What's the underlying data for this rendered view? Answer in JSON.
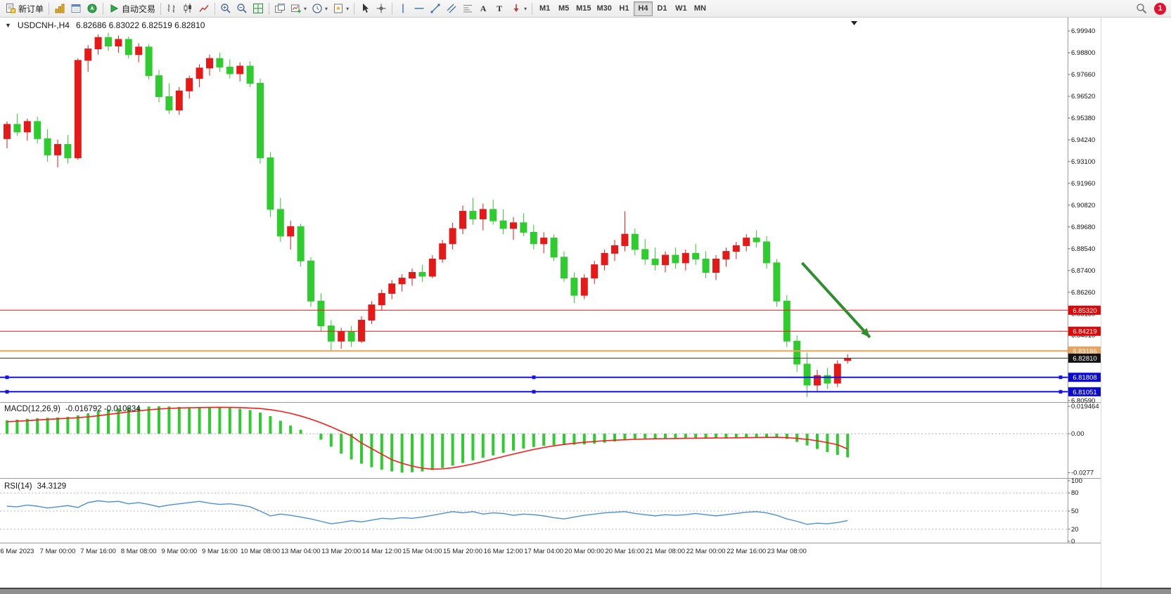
{
  "toolbar": {
    "new_order_label": "新订单",
    "autotrading_label": "自动交易",
    "timeframes": [
      "M1",
      "M5",
      "M15",
      "M30",
      "H1",
      "H4",
      "D1",
      "W1",
      "MN"
    ],
    "active_timeframe": "H4",
    "notification_count": "1",
    "icons": {
      "new_order": "new-order-doc",
      "market_watch": "gold-bars",
      "data_window": "data-window",
      "navigator": "navigator-globe",
      "autotrading": "play-triangle",
      "bar_chart": "ohlc-bars",
      "candle_chart": "candlesticks",
      "line_chart": "line-chart",
      "zoom_in": "magnifier-plus",
      "zoom_out": "magnifier-minus",
      "tile_windows": "tile-grid",
      "cascade_windows": "cascade-windows",
      "new_chart": "chart-plus",
      "profiles": "clock",
      "templates": "page-star",
      "cursor": "pointer-arrow",
      "crosshair": "crosshair",
      "vline": "vertical-line",
      "hline": "horizontal-line",
      "trendline": "trend-line",
      "channel": "parallel-channel",
      "fibonacci": "fibo-lines",
      "text": "letter-A",
      "label": "letter-T",
      "arrows_tool": "arrow-marker",
      "search": "magnifier",
      "notification": "red-count-bubble"
    }
  },
  "chart_data": {
    "type": "candlestick",
    "symbol_period_label": "USDCNH-,H4",
    "ohlc_display": "6.82686 6.83022 6.82519 6.82810",
    "up_color": "#e61919",
    "down_color": "#2ecc2e",
    "grid": false,
    "price_axis": {
      "min": 6.8051,
      "max": 7.0053,
      "ticks": [
        "6.99940",
        "6.98800",
        "6.97660",
        "6.96520",
        "6.95380",
        "6.94240",
        "6.93100",
        "6.91960",
        "6.90820",
        "6.89680",
        "6.88540",
        "6.87400",
        "6.86260",
        "6.85130",
        "6.84010",
        "6.82870",
        "6.81730",
        "6.80590"
      ]
    },
    "candles": [
      [
        6.943,
        6.952,
        6.938,
        6.9505
      ],
      [
        6.9505,
        6.956,
        6.9445,
        6.9465
      ],
      [
        6.9465,
        6.9535,
        6.942,
        6.952
      ],
      [
        6.952,
        6.9545,
        6.9405,
        6.943
      ],
      [
        6.943,
        6.948,
        6.931,
        6.9345
      ],
      [
        6.9345,
        6.9425,
        6.928,
        6.94
      ],
      [
        6.94,
        6.945,
        6.93,
        6.933
      ],
      [
        6.933,
        6.985,
        6.932,
        6.984
      ],
      [
        6.984,
        6.992,
        6.978,
        6.99
      ],
      [
        6.99,
        6.9975,
        6.987,
        6.996
      ],
      [
        6.996,
        6.9985,
        6.989,
        6.9915
      ],
      [
        6.9915,
        6.997,
        6.988,
        6.995
      ],
      [
        6.995,
        6.9965,
        6.985,
        6.987
      ],
      [
        6.987,
        6.993,
        6.983,
        6.991
      ],
      [
        6.991,
        6.9925,
        6.974,
        6.976
      ],
      [
        6.976,
        6.979,
        6.962,
        6.965
      ],
      [
        6.965,
        6.972,
        6.956,
        6.958
      ],
      [
        6.958,
        6.97,
        6.9555,
        6.968
      ],
      [
        6.968,
        6.976,
        6.964,
        6.9745
      ],
      [
        6.9745,
        6.982,
        6.97,
        6.98
      ],
      [
        6.98,
        6.987,
        6.976,
        6.985
      ],
      [
        6.985,
        6.988,
        6.978,
        6.9805
      ],
      [
        6.9805,
        6.9845,
        6.9745,
        6.977
      ],
      [
        6.977,
        6.983,
        6.973,
        6.981
      ],
      [
        6.981,
        6.9835,
        6.97,
        6.972
      ],
      [
        6.972,
        6.9745,
        6.93,
        6.933
      ],
      [
        6.933,
        6.936,
        6.902,
        6.906
      ],
      [
        6.906,
        6.912,
        6.889,
        6.892
      ],
      [
        6.892,
        6.9,
        6.885,
        6.897
      ],
      [
        6.897,
        6.8985,
        6.876,
        6.879
      ],
      [
        6.879,
        6.881,
        6.855,
        6.858
      ],
      [
        6.858,
        6.862,
        6.842,
        6.845
      ],
      [
        6.845,
        6.848,
        6.8315,
        6.837
      ],
      [
        6.837,
        6.844,
        6.833,
        6.842
      ],
      [
        6.842,
        6.845,
        6.834,
        6.837
      ],
      [
        6.837,
        6.85,
        6.836,
        6.848
      ],
      [
        6.848,
        6.858,
        6.846,
        6.856
      ],
      [
        6.856,
        6.864,
        6.853,
        6.862
      ],
      [
        6.862,
        6.869,
        6.859,
        6.867
      ],
      [
        6.867,
        6.872,
        6.863,
        6.87
      ],
      [
        6.87,
        6.875,
        6.866,
        6.873
      ],
      [
        6.873,
        6.877,
        6.868,
        6.871
      ],
      [
        6.871,
        6.882,
        6.87,
        6.88
      ],
      [
        6.88,
        6.89,
        6.878,
        6.888
      ],
      [
        6.888,
        6.899,
        6.885,
        6.896
      ],
      [
        6.896,
        6.908,
        6.893,
        6.905
      ],
      [
        6.905,
        6.912,
        6.898,
        6.901
      ],
      [
        6.901,
        6.909,
        6.895,
        6.906
      ],
      [
        6.906,
        6.911,
        6.898,
        6.9
      ],
      [
        6.9,
        6.906,
        6.893,
        6.896
      ],
      [
        6.896,
        6.902,
        6.89,
        6.899
      ],
      [
        6.899,
        6.904,
        6.892,
        6.894
      ],
      [
        6.894,
        6.898,
        6.885,
        6.888
      ],
      [
        6.888,
        6.894,
        6.883,
        6.891
      ],
      [
        6.891,
        6.893,
        6.879,
        6.881
      ],
      [
        6.881,
        6.884,
        6.868,
        6.87
      ],
      [
        6.87,
        6.873,
        6.857,
        6.861
      ],
      [
        6.861,
        6.872,
        6.859,
        6.87
      ],
      [
        6.87,
        6.879,
        6.867,
        6.877
      ],
      [
        6.877,
        6.885,
        6.874,
        6.883
      ],
      [
        6.883,
        6.89,
        6.879,
        6.887
      ],
      [
        6.887,
        6.905,
        6.884,
        6.893
      ],
      [
        6.893,
        6.896,
        6.882,
        6.885
      ],
      [
        6.885,
        6.8905,
        6.877,
        6.88
      ],
      [
        6.88,
        6.886,
        6.874,
        6.877
      ],
      [
        6.877,
        6.884,
        6.873,
        6.882
      ],
      [
        6.882,
        6.886,
        6.875,
        6.878
      ],
      [
        6.878,
        6.885,
        6.874,
        6.883
      ],
      [
        6.883,
        6.888,
        6.877,
        6.88
      ],
      [
        6.88,
        6.884,
        6.87,
        6.873
      ],
      [
        6.873,
        6.882,
        6.869,
        6.88
      ],
      [
        6.88,
        6.886,
        6.876,
        6.884
      ],
      [
        6.884,
        6.889,
        6.88,
        6.887
      ],
      [
        6.887,
        6.893,
        6.884,
        6.891
      ],
      [
        6.891,
        6.895,
        6.886,
        6.889
      ],
      [
        6.889,
        6.892,
        6.875,
        6.878
      ],
      [
        6.878,
        6.88,
        6.855,
        6.858
      ],
      [
        6.858,
        6.861,
        6.834,
        6.837
      ],
      [
        6.837,
        6.84,
        6.821,
        6.825
      ],
      [
        6.825,
        6.831,
        6.8078,
        6.814
      ],
      [
        6.814,
        6.822,
        6.8105,
        6.819
      ],
      [
        6.819,
        6.823,
        6.812,
        6.815
      ],
      [
        6.815,
        6.827,
        6.813,
        6.825
      ],
      [
        6.82686,
        6.83022,
        6.82519,
        6.8281
      ]
    ],
    "hlines": [
      {
        "price": 6.8532,
        "label": "6.85320",
        "color": "#f01414",
        "badge": "#dd0808",
        "width": 1,
        "handles": false
      },
      {
        "price": 6.84219,
        "label": "6.84219",
        "color": "#f01414",
        "badge": "#dd0808",
        "width": 1,
        "handles": false
      },
      {
        "price": 6.83186,
        "label": "6.83186",
        "color": "#e8a35f",
        "badge": "#e8a35f",
        "width": 2,
        "handles": false
      },
      {
        "price": 6.8281,
        "label": "6.82810",
        "color": "#3a3a3a",
        "badge": "#141414",
        "width": 1,
        "handles": false
      },
      {
        "price": 6.81808,
        "label": "6.81808",
        "color": "#1414e6",
        "badge": "#0a0ad0",
        "width": 2,
        "handles": true
      },
      {
        "price": 6.81051,
        "label": "6.81051",
        "color": "#1414e6",
        "badge": "#0a0ad0",
        "width": 2,
        "handles": true
      }
    ],
    "arrow": {
      "from": {
        "index": 78.5,
        "price": 6.878
      },
      "to": {
        "index": 85.2,
        "price": 6.839
      },
      "color": "#2d8f2d"
    },
    "macd": {
      "label": "MACD(12,26,9)",
      "values_display": "-0.016792 -0.010834",
      "axis_ticks": [
        "0.019464",
        "0.00",
        "-0.0277"
      ],
      "range": [
        -0.0305,
        0.0215
      ],
      "hist_color": "#2ecc2e",
      "signal_color": "#ff1a1a",
      "histogram": [
        0.0095,
        0.01,
        0.0106,
        0.011,
        0.0113,
        0.0116,
        0.012,
        0.013,
        0.0145,
        0.016,
        0.0172,
        0.0181,
        0.0187,
        0.0191,
        0.0193,
        0.0195,
        0.0194,
        0.0191,
        0.0188,
        0.0189,
        0.019,
        0.0188,
        0.0184,
        0.0178,
        0.0168,
        0.015,
        0.0125,
        0.0092,
        0.0058,
        0.0028,
        0.0,
        -0.0042,
        -0.0092,
        -0.0142,
        -0.0183,
        -0.0213,
        -0.0238,
        -0.0256,
        -0.0268,
        -0.0277,
        -0.0274,
        -0.0268,
        -0.0258,
        -0.0244,
        -0.0227,
        -0.0208,
        -0.0189,
        -0.0171,
        -0.0154,
        -0.0136,
        -0.0119,
        -0.0105,
        -0.0094,
        -0.0086,
        -0.0081,
        -0.0079,
        -0.0078,
        -0.0076,
        -0.0071,
        -0.0064,
        -0.0056,
        -0.0047,
        -0.0039,
        -0.0034,
        -0.0033,
        -0.0035,
        -0.0036,
        -0.0035,
        -0.0033,
        -0.0032,
        -0.0033,
        -0.0034,
        -0.0033,
        -0.003,
        -0.0026,
        -0.0023,
        -0.0025,
        -0.0037,
        -0.0058,
        -0.0083,
        -0.0108,
        -0.013,
        -0.015,
        -0.0168
      ],
      "signal": [
        0.0085,
        0.0089,
        0.0093,
        0.0098,
        0.0102,
        0.0106,
        0.011,
        0.0114,
        0.012,
        0.0128,
        0.0137,
        0.0146,
        0.0155,
        0.0163,
        0.017,
        0.0176,
        0.018,
        0.0183,
        0.0185,
        0.0186,
        0.0187,
        0.0188,
        0.0187,
        0.0186,
        0.0183,
        0.0179,
        0.0171,
        0.016,
        0.0145,
        0.0126,
        0.0104,
        0.0078,
        0.0049,
        0.0017,
        -0.0016,
        -0.0066,
        -0.0106,
        -0.0146,
        -0.0185,
        -0.021,
        -0.023,
        -0.0245,
        -0.0252,
        -0.025,
        -0.0242,
        -0.023,
        -0.0215,
        -0.0198,
        -0.018,
        -0.0162,
        -0.0145,
        -0.0128,
        -0.0112,
        -0.0098,
        -0.0086,
        -0.0076,
        -0.0068,
        -0.0061,
        -0.0055,
        -0.005,
        -0.0046,
        -0.0043,
        -0.004,
        -0.0038,
        -0.0036,
        -0.0035,
        -0.0034,
        -0.0033,
        -0.0032,
        -0.0031,
        -0.003,
        -0.003,
        -0.0029,
        -0.0028,
        -0.0027,
        -0.0026,
        -0.0026,
        -0.0028,
        -0.0033,
        -0.004,
        -0.005,
        -0.0063,
        -0.0078,
        -0.0108
      ]
    },
    "rsi": {
      "label": "RSI(14)",
      "value_display": "34.3129",
      "color": "#4a90d9",
      "levels": [
        80,
        50,
        20
      ],
      "axis_ticks": [
        "100",
        "80",
        "50",
        "20",
        "0"
      ],
      "range": [
        0,
        100
      ],
      "values": [
        58,
        57,
        60,
        58,
        55,
        57,
        59,
        56,
        64,
        67,
        65,
        66,
        62,
        64,
        61,
        57,
        60,
        62,
        64,
        66,
        63,
        61,
        62,
        60,
        57,
        50,
        42,
        45,
        43,
        40,
        37,
        33,
        29,
        31,
        34,
        32,
        35,
        38,
        37,
        39,
        38,
        40,
        43,
        46,
        49,
        47,
        49,
        45,
        47,
        46,
        43,
        45,
        44,
        42,
        39,
        37,
        40,
        43,
        45,
        47,
        48,
        49,
        46,
        44,
        42,
        44,
        43,
        44,
        46,
        44,
        42,
        44,
        46,
        48,
        49,
        47,
        43,
        37,
        33,
        28,
        30,
        29,
        31,
        34.3
      ]
    },
    "time_labels": [
      "6 Mar 2023",
      "7 Mar 00:00",
      "7 Mar 16:00",
      "8 Mar 08:00",
      "9 Mar 00:00",
      "9 Mar 16:00",
      "10 Mar 08:00",
      "13 Mar 04:00",
      "13 Mar 20:00",
      "14 Mar 12:00",
      "15 Mar 04:00",
      "15 Mar 20:00",
      "16 Mar 12:00",
      "17 Mar 04:00",
      "20 Mar 00:00",
      "20 Mar 16:00",
      "21 Mar 08:00",
      "22 Mar 00:00",
      "22 Mar 16:00",
      "23 Mar 08:00"
    ]
  }
}
